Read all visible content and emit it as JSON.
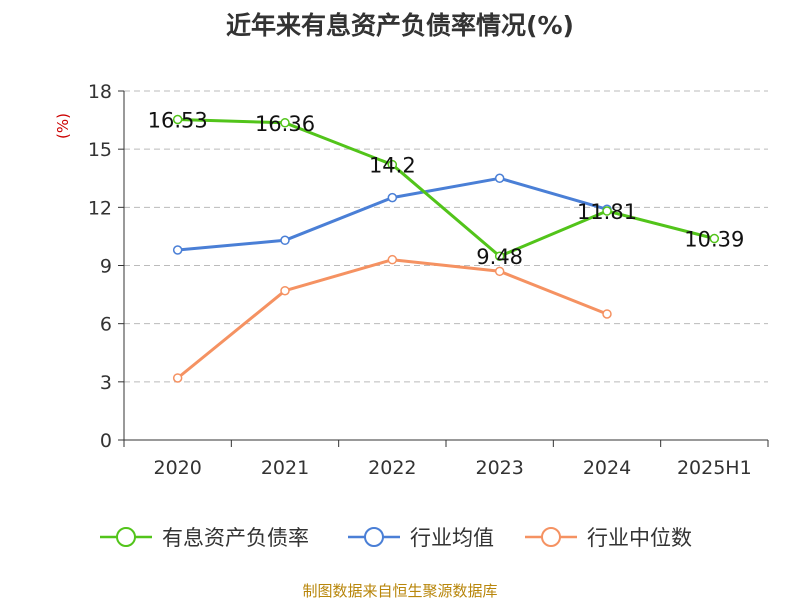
{
  "chart_data": {
    "type": "line",
    "title": "近年来有息资产负债率情况(%)",
    "ylabel": "(%)",
    "xlabel": "",
    "categories": [
      "2020",
      "2021",
      "2022",
      "2023",
      "2024",
      "2025H1"
    ],
    "ylim": [
      0,
      18
    ],
    "yticks": [
      0,
      3,
      6,
      9,
      12,
      15,
      18
    ],
    "grid": true,
    "legend_position": "bottom",
    "series": [
      {
        "name": "有息资产负债率",
        "color": "#52c41a",
        "values": [
          16.53,
          16.36,
          14.2,
          9.48,
          11.81,
          10.39
        ],
        "labels": [
          "16.53",
          "16.36",
          "14.2",
          "9.48",
          "11.81",
          "10.39"
        ]
      },
      {
        "name": "行业均值",
        "color": "#4a7fd6",
        "values": [
          9.8,
          10.3,
          12.5,
          13.5,
          11.9,
          null
        ]
      },
      {
        "name": "行业中位数",
        "color": "#f59262",
        "values": [
          3.2,
          7.7,
          9.3,
          8.7,
          6.5,
          null
        ]
      }
    ],
    "source": "制图数据来自恒生聚源数据库",
    "colors": {
      "axis": "#333333",
      "grid": "#bbbbbb",
      "ylabel": "#cc0000",
      "source": "#b8860b",
      "title": "#333333"
    }
  }
}
